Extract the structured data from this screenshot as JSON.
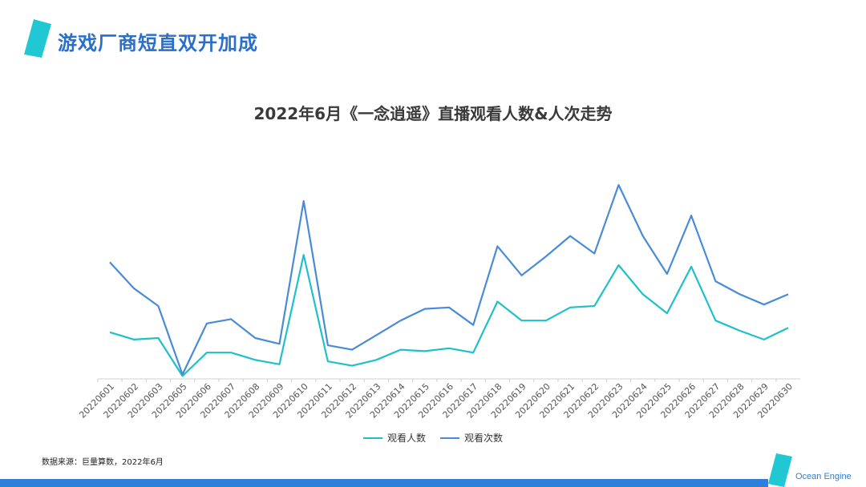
{
  "header": {
    "title": "游戏厂商短直双开加成"
  },
  "footer": {
    "source": "数据来源：巨量算数，2022年6月",
    "brand": "Ocean Engine"
  },
  "colors": {
    "accent": "#2a6fc9",
    "logo": "#22c7d4",
    "bar": "#2e7fd9"
  },
  "chart_data": {
    "type": "line",
    "title": "2022年6月《一念逍遥》直播观看人数&人次走势",
    "xlabel": "",
    "ylabel": "",
    "grid": false,
    "legend_position": "bottom",
    "x": [
      "20220601",
      "20220602",
      "20220603",
      "20220605",
      "20220606",
      "20220607",
      "20220608",
      "20220609",
      "20220610",
      "20220611",
      "20220612",
      "20220613",
      "20220614",
      "20220615",
      "20220616",
      "20220617",
      "20220618",
      "20220619",
      "20220620",
      "20220621",
      "20220622",
      "20220623",
      "20220624",
      "20220625",
      "20220626",
      "20220627",
      "20220628",
      "20220629",
      "20220630"
    ],
    "series": [
      {
        "name": "观看人数",
        "color": "#1fc0c9",
        "values": [
          32,
          27,
          28,
          2,
          18,
          18,
          13,
          10,
          85,
          12,
          9,
          13,
          20,
          19,
          21,
          18,
          53,
          40,
          40,
          49,
          50,
          78,
          58,
          45,
          77,
          40,
          33,
          27,
          35
        ]
      },
      {
        "name": "观看次数",
        "color": "#4a8bd8",
        "values": [
          80,
          62,
          50,
          3,
          38,
          41,
          28,
          24,
          122,
          23,
          20,
          30,
          40,
          48,
          49,
          37,
          91,
          71,
          84,
          98,
          86,
          133,
          98,
          72,
          112,
          67,
          58,
          51,
          58
        ]
      }
    ],
    "ylim": [
      0,
      150
    ]
  }
}
